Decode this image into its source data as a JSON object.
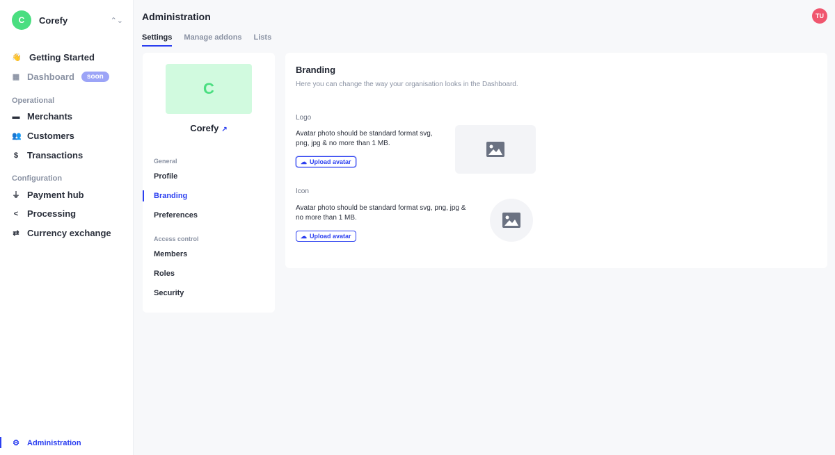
{
  "sidebar": {
    "org_initial": "C",
    "org_name": "Corefy",
    "getting_started": "Getting Started",
    "dashboard": "Dashboard",
    "soon": "soon",
    "operational": "Operational",
    "merchants": "Merchants",
    "customers": "Customers",
    "transactions": "Transactions",
    "configuration": "Configuration",
    "payment_hub": "Payment hub",
    "processing": "Processing",
    "currency_exchange": "Currency exchange",
    "administration": "Administration"
  },
  "header": {
    "title": "Administration",
    "user_initials": "TU",
    "user_color": "#f0566e",
    "tabs": [
      {
        "label": "Settings"
      },
      {
        "label": "Manage addons"
      },
      {
        "label": "Lists"
      }
    ]
  },
  "org_card": {
    "initial": "C",
    "name": "Corefy",
    "general": "General",
    "profile": "Profile",
    "branding": "Branding",
    "preferences": "Preferences",
    "access_control": "Access control",
    "members": "Members",
    "roles": "Roles",
    "security": "Security"
  },
  "branding": {
    "title": "Branding",
    "subtitle": "Here you can change the way your organisation looks in the Dashboard.",
    "logo_label": "Logo",
    "logo_desc_1": "Avatar photo should be standard format svg,",
    "logo_desc_2": "png, jpg & no more than 1 MB.",
    "icon_label": "Icon",
    "icon_desc_1": "Avatar photo should be standard format svg, png, jpg &",
    "icon_desc_2": "no more than 1 MB.",
    "upload_label": "Upload avatar"
  },
  "colors": {
    "accent": "#2b3ff0",
    "org_green": "#4ade80"
  }
}
